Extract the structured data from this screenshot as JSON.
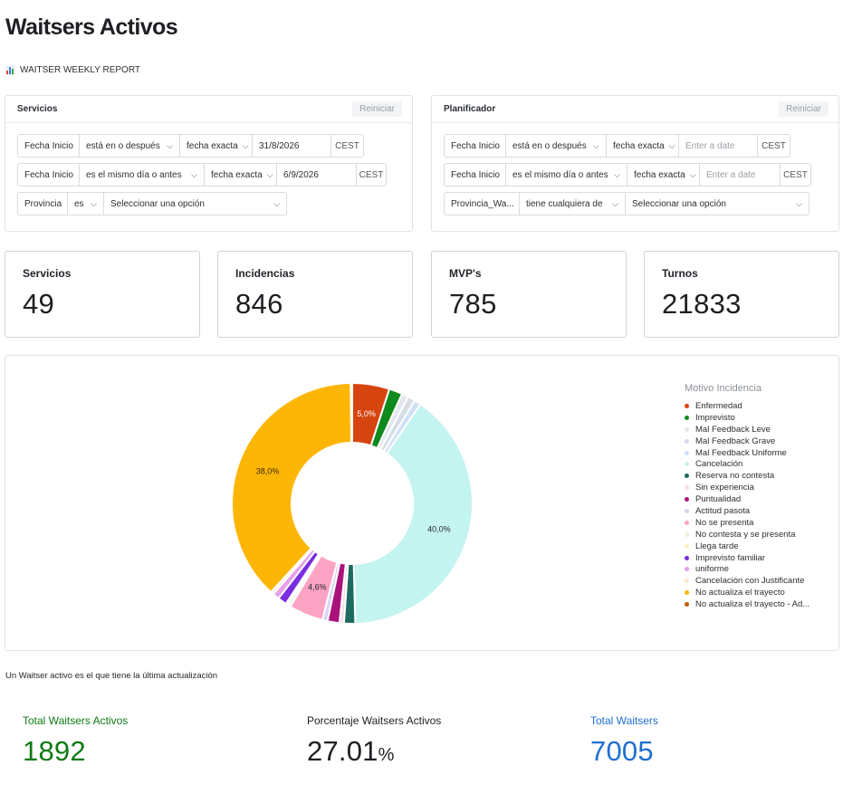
{
  "page": {
    "title": "Waitsers Activos",
    "report_tag": "WAITSER WEEKLY REPORT",
    "footnote": "Un Waitser activo es el que tiene la última actualización"
  },
  "filters": {
    "servicios": {
      "title": "Servicios",
      "reset": "Reiniciar",
      "row1": {
        "field": "Fecha Inicio",
        "operator": "está en o después",
        "mode": "fecha exacta",
        "value": "31/8/2026",
        "tz": "CEST"
      },
      "row2": {
        "field": "Fecha Inicio",
        "operator": "es el mismo día o antes",
        "mode": "fecha exacta",
        "value": "6/9/2026",
        "tz": "CEST"
      },
      "row3": {
        "field": "Provincia",
        "operator": "es",
        "placeholder": "Seleccionar una opción"
      }
    },
    "planificador": {
      "title": "Planificador",
      "reset": "Reiniciar",
      "row1": {
        "field": "Fecha Inicio",
        "operator": "está en o después",
        "mode": "fecha exacta",
        "placeholder": "Enter a date",
        "tz": "CEST"
      },
      "row2": {
        "field": "Fecha Inicio",
        "operator": "es el mismo día o antes",
        "mode": "fecha exacta",
        "placeholder": "Enter a date",
        "tz": "CEST"
      },
      "row3": {
        "field": "Provincia_Wa...",
        "operator": "tiene cualquiera de",
        "placeholder": "Seleccionar una opción"
      }
    }
  },
  "metrics": [
    {
      "label": "Servicios",
      "value": "49"
    },
    {
      "label": "Incidencias",
      "value": "846"
    },
    {
      "label": "MVP's",
      "value": "785"
    },
    {
      "label": "Turnos",
      "value": "21833"
    }
  ],
  "chart_data": {
    "type": "pie",
    "subtype": "donut",
    "legend_title": "Motivo Incidencia",
    "legend_placement": "right",
    "slices": [
      {
        "name": "Enfermedad",
        "value": 5.0,
        "color": "#d64510",
        "label": "5,0%"
      },
      {
        "name": "Imprevisto",
        "value": 1.8,
        "color": "#0f8a1c",
        "label": ""
      },
      {
        "name": "Mal Feedback Leve",
        "value": 0.9,
        "color": "#e3e7ee",
        "label": ""
      },
      {
        "name": "Mal Feedback Grave",
        "value": 1.0,
        "color": "#d6dde8",
        "label": ""
      },
      {
        "name": "Mal Feedback Uniforme",
        "value": 0.9,
        "color": "#cfe0f7",
        "label": ""
      },
      {
        "name": "Cancelación",
        "value": 40.0,
        "color": "#c4f4ef",
        "label": "40,0%"
      },
      {
        "name": "Reserva no contesta",
        "value": 1.5,
        "color": "#1b6b60",
        "label": ""
      },
      {
        "name": "Sin experiencia",
        "value": 0.6,
        "color": "#fbdcea",
        "label": ""
      },
      {
        "name": "Puntualidad",
        "value": 1.6,
        "color": "#a8127a",
        "label": ""
      },
      {
        "name": "Actitud pasota",
        "value": 0.7,
        "color": "#dcd2f2",
        "label": ""
      },
      {
        "name": "No se presenta",
        "value": 4.6,
        "color": "#fca3c4",
        "label": "4,6%"
      },
      {
        "name": "No contesta y se presenta",
        "value": 0.4,
        "color": "#e9f2dc",
        "label": ""
      },
      {
        "name": "Llega tarde",
        "value": 0.3,
        "color": "#fff1c6",
        "label": ""
      },
      {
        "name": "Imprevisto familiar",
        "value": 1.2,
        "color": "#7a2ee0",
        "label": ""
      },
      {
        "name": "uniforme",
        "value": 0.9,
        "color": "#e6a0ec",
        "label": ""
      },
      {
        "name": "Cancelación con Justificante",
        "value": 0.4,
        "color": "#fde6cf",
        "label": ""
      },
      {
        "name": "No actualiza el trayecto",
        "value": 38.0,
        "color": "#fdb606",
        "label": "38,0%"
      },
      {
        "name": "No actualiza el trayecto - Ad...",
        "value": 0.2,
        "color": "#c25c00",
        "label": ""
      }
    ]
  },
  "bottom_metrics": [
    {
      "label": "Total Waitsers Activos",
      "value": "1892",
      "suffix": "",
      "color": "#0f7a14"
    },
    {
      "label": "Porcentaje Waitsers Activos",
      "value": "27.01",
      "suffix": "%",
      "color": "#1d1f23"
    },
    {
      "label": "Total Waitsers",
      "value": "7005",
      "suffix": "",
      "color": "#1f6fd1"
    }
  ]
}
